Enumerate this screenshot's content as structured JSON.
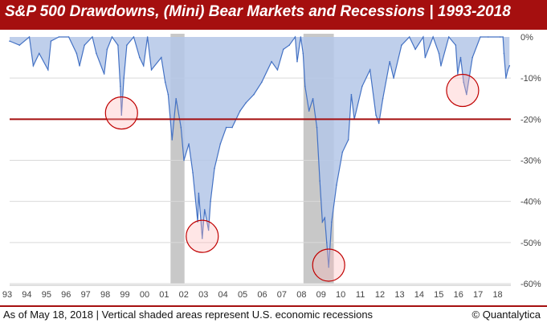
{
  "header": {
    "title": "S&P 500 Drawdowns, (Mini) Bear Markets and Recessions | 1993-2018"
  },
  "footer": {
    "note": "As of May 18, 2018 | Vertical shaded areas represent U.S. economic recessions",
    "brand": "© Quantalytica"
  },
  "colors": {
    "title_bg": "#a50f0f",
    "area_fill": "#b4c7e7",
    "line": "#4472c4",
    "threshold": "#a50f0f",
    "recession": "#c8c8c8",
    "highlight_circle": "#c00000"
  },
  "chart_data": {
    "type": "area",
    "title": "S&P 500 Drawdowns, (Mini) Bear Markets and Recessions | 1993-2018",
    "xlabel": "",
    "ylabel": "",
    "x_tick_labels": [
      "93",
      "94",
      "95",
      "96",
      "97",
      "98",
      "99",
      "00",
      "01",
      "02",
      "03",
      "04",
      "05",
      "06",
      "07",
      "08",
      "09",
      "10",
      "11",
      "12",
      "13",
      "14",
      "15",
      "16",
      "17",
      "18"
    ],
    "y_tick_labels": [
      "0%",
      "-10%",
      "-20%",
      "-30%",
      "-40%",
      "-50%",
      "-60%"
    ],
    "y_ticks": [
      0,
      -10,
      -20,
      -30,
      -40,
      -50,
      -60
    ],
    "ylim": [
      -60,
      0
    ],
    "xlim": [
      1993.0,
      2018.45
    ],
    "grid": "horizontal",
    "threshold_line": -20,
    "recessions": [
      [
        2001.17,
        2001.88
      ],
      [
        2007.92,
        2009.46
      ]
    ],
    "highlight_circles": [
      {
        "x": 1998.68,
        "y": -18.5
      },
      {
        "x": 2002.78,
        "y": -48.5
      },
      {
        "x": 2009.2,
        "y": -55.5
      },
      {
        "x": 2016.0,
        "y": -13.0
      }
    ],
    "series": [
      {
        "x": [
          1993.0,
          1993.5,
          1994.0,
          1994.2,
          1994.5,
          1994.95,
          1995.1,
          1995.5,
          1996.0,
          1996.4,
          1996.55,
          1996.8,
          1997.2,
          1997.4,
          1997.8,
          1997.95,
          1998.2,
          1998.5,
          1998.62,
          1998.68,
          1998.8,
          1998.95,
          1999.3,
          1999.6,
          1999.8,
          2000.0,
          2000.2,
          2000.7,
          2000.9,
          2001.05,
          2001.25,
          2001.45,
          2001.7,
          2001.85,
          2002.1,
          2002.3,
          2002.55,
          2002.6,
          2002.78,
          2002.9,
          2003.1,
          2003.2,
          2003.4,
          2003.7,
          2004.0,
          2004.3,
          2004.7,
          2005.0,
          2005.4,
          2005.8,
          2006.3,
          2006.6,
          2006.9,
          2007.2,
          2007.5,
          2007.6,
          2007.78,
          2007.9,
          2008.0,
          2008.2,
          2008.4,
          2008.6,
          2008.75,
          2008.88,
          2009.0,
          2009.1,
          2009.2,
          2009.35,
          2009.6,
          2009.9,
          2010.2,
          2010.35,
          2010.5,
          2010.9,
          2011.3,
          2011.6,
          2011.75,
          2011.95,
          2012.3,
          2012.5,
          2012.9,
          2013.3,
          2013.6,
          2014.0,
          2014.1,
          2014.5,
          2014.8,
          2014.9,
          2015.3,
          2015.65,
          2015.75,
          2015.9,
          2016.05,
          2016.2,
          2016.5,
          2016.9,
          2017.3,
          2017.9,
          2018.05,
          2018.1,
          2018.2,
          2018.3,
          2018.38
        ],
        "values": [
          -1,
          -2,
          0,
          -7,
          -4,
          -8,
          -1,
          0,
          0,
          -4,
          -7,
          -2,
          0,
          -4,
          -9,
          -3,
          0,
          -2,
          -12,
          -19,
          -10,
          -2,
          0,
          -5,
          -7,
          0,
          -8,
          -5,
          -11,
          -14,
          -25,
          -15,
          -22,
          -30,
          -26,
          -33,
          -45,
          -38,
          -49,
          -42,
          -47,
          -40,
          -32,
          -26,
          -22,
          -22,
          -18,
          -16,
          -14,
          -11,
          -6,
          -8,
          -3,
          -2,
          0,
          -6,
          0,
          -4,
          -12,
          -18,
          -15,
          -22,
          -35,
          -45,
          -44,
          -50,
          -56,
          -45,
          -36,
          -28,
          -25,
          -14,
          -20,
          -12,
          -8,
          -19,
          -21,
          -15,
          -6,
          -10,
          -2,
          0,
          -3,
          0,
          -5,
          0,
          -4,
          -7,
          0,
          -2,
          -9,
          -5,
          -11,
          -14,
          -5,
          0,
          0,
          0,
          0,
          -4,
          -10,
          -8,
          -7
        ]
      }
    ]
  }
}
